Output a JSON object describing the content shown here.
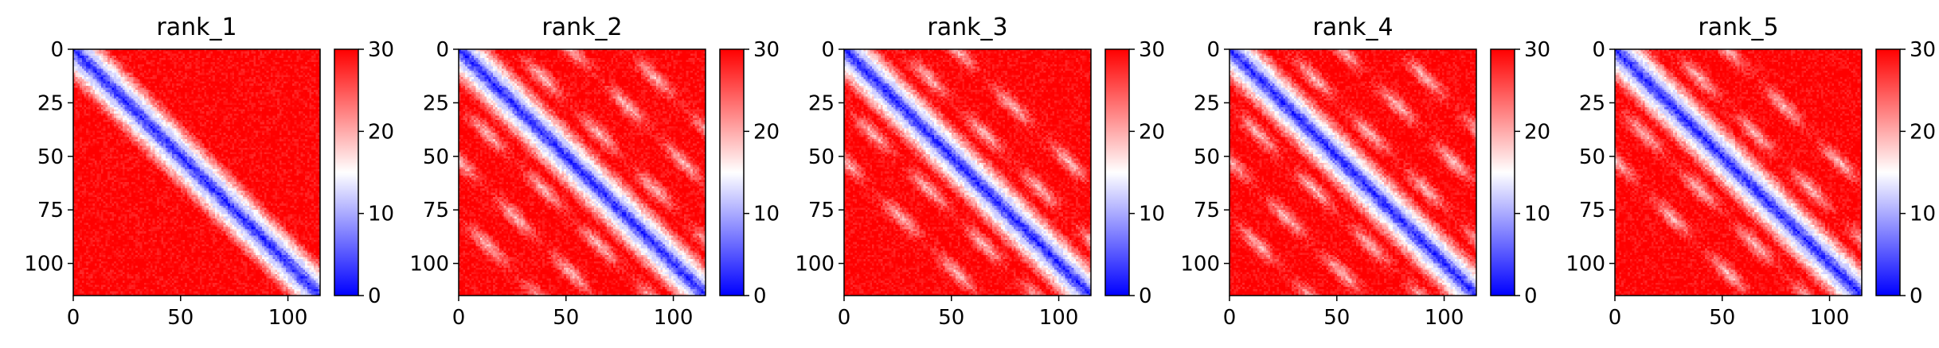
{
  "chart_data": [
    {
      "type": "heatmap",
      "title": "rank_1",
      "xlim": [
        0,
        115
      ],
      "ylim": [
        115,
        0
      ],
      "x_ticks": [
        "0",
        "50",
        "100"
      ],
      "y_ticks": [
        "0",
        "25",
        "50",
        "75",
        "100"
      ],
      "colorbar": {
        "ticks": [
          "0",
          "10",
          "20",
          "30"
        ],
        "range": [
          0,
          30
        ],
        "colormap": [
          "#0000ff",
          "#ffffff",
          "#ff0000"
        ]
      },
      "pattern": {
        "diagonal_band": true,
        "off_diagonals": []
      }
    },
    {
      "type": "heatmap",
      "title": "rank_2",
      "xlim": [
        0,
        115
      ],
      "ylim": [
        115,
        0
      ],
      "x_ticks": [
        "0",
        "50",
        "100"
      ],
      "y_ticks": [
        "0",
        "25",
        "50",
        "75",
        "100"
      ],
      "colorbar": {
        "ticks": [
          "0",
          "10",
          "20",
          "30"
        ],
        "range": [
          0,
          30
        ],
        "colormap": [
          "#0000ff",
          "#ffffff",
          "#ff0000"
        ]
      },
      "pattern": {
        "diagonal_band": true,
        "off_diagonals": [
          26,
          52,
          78
        ]
      }
    },
    {
      "type": "heatmap",
      "title": "rank_3",
      "xlim": [
        0,
        115
      ],
      "ylim": [
        115,
        0
      ],
      "x_ticks": [
        "0",
        "50",
        "100"
      ],
      "y_ticks": [
        "0",
        "25",
        "50",
        "75",
        "100"
      ],
      "colorbar": {
        "ticks": [
          "0",
          "10",
          "20",
          "30"
        ],
        "range": [
          0,
          30
        ],
        "colormap": [
          "#0000ff",
          "#ffffff",
          "#ff0000"
        ]
      },
      "pattern": {
        "diagonal_band": true,
        "off_diagonals": [
          26,
          52
        ]
      }
    },
    {
      "type": "heatmap",
      "title": "rank_4",
      "xlim": [
        0,
        115
      ],
      "ylim": [
        115,
        0
      ],
      "x_ticks": [
        "0",
        "50",
        "100"
      ],
      "y_ticks": [
        "0",
        "25",
        "50",
        "75",
        "100"
      ],
      "colorbar": {
        "ticks": [
          "0",
          "10",
          "20",
          "30"
        ],
        "range": [
          0,
          30
        ],
        "colormap": [
          "#0000ff",
          "#ffffff",
          "#ff0000"
        ]
      },
      "pattern": {
        "diagonal_band": true,
        "off_diagonals": [
          26,
          52,
          78
        ]
      }
    },
    {
      "type": "heatmap",
      "title": "rank_5",
      "xlim": [
        0,
        115
      ],
      "ylim": [
        115,
        0
      ],
      "x_ticks": [
        "0",
        "50",
        "100"
      ],
      "y_ticks": [
        "0",
        "25",
        "50",
        "75",
        "100"
      ],
      "colorbar": {
        "ticks": [
          "0",
          "10",
          "20",
          "30"
        ],
        "range": [
          0,
          30
        ],
        "colormap": [
          "#0000ff",
          "#ffffff",
          "#ff0000"
        ]
      },
      "pattern": {
        "diagonal_band": true,
        "off_diagonals": [
          26,
          52
        ]
      }
    }
  ]
}
